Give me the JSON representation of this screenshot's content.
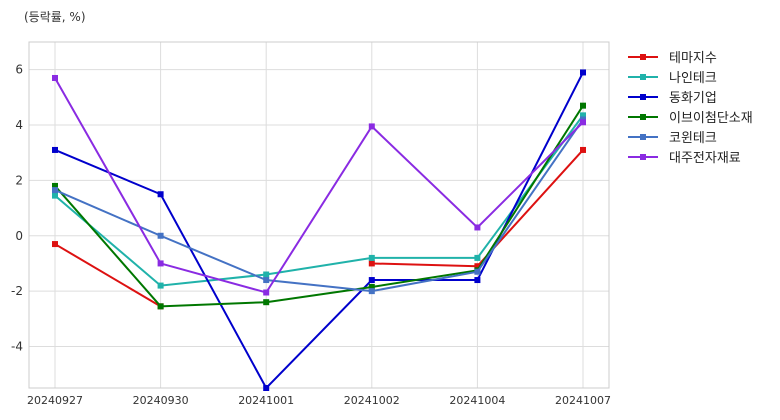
{
  "chart_data": {
    "type": "line",
    "unit_label": "(등락률, %)",
    "categories": [
      "20240927",
      "20240930",
      "20241001",
      "20241002",
      "20241004",
      "20241007"
    ],
    "ylim": [
      -5.5,
      7.0
    ],
    "yticks": [
      -4,
      -2,
      0,
      2,
      4,
      6
    ],
    "grid": true,
    "legend_position": "right",
    "series": [
      {
        "name": "테마지수",
        "color": "#dd1111",
        "values": [
          -0.3,
          -2.55,
          null,
          -1.0,
          -1.1,
          3.1
        ]
      },
      {
        "name": "나인테크",
        "color": "#20b2aa",
        "values": [
          1.45,
          -1.8,
          -1.4,
          -0.8,
          -0.8,
          4.35
        ]
      },
      {
        "name": "동화기업",
        "color": "#0000cc",
        "values": [
          3.1,
          1.5,
          -5.5,
          -1.6,
          -1.6,
          5.9
        ]
      },
      {
        "name": "이브이첨단소재",
        "color": "#007700",
        "values": [
          1.8,
          -2.55,
          -2.4,
          -1.85,
          -1.25,
          4.7
        ]
      },
      {
        "name": "코윈테크",
        "color": "#4472c4",
        "values": [
          1.65,
          0.0,
          -1.6,
          -2.0,
          -1.3,
          4.2
        ]
      },
      {
        "name": "대주전자재료",
        "color": "#8a2be2",
        "values": [
          5.7,
          -1.0,
          -2.05,
          3.95,
          0.3,
          4.1
        ]
      }
    ]
  }
}
